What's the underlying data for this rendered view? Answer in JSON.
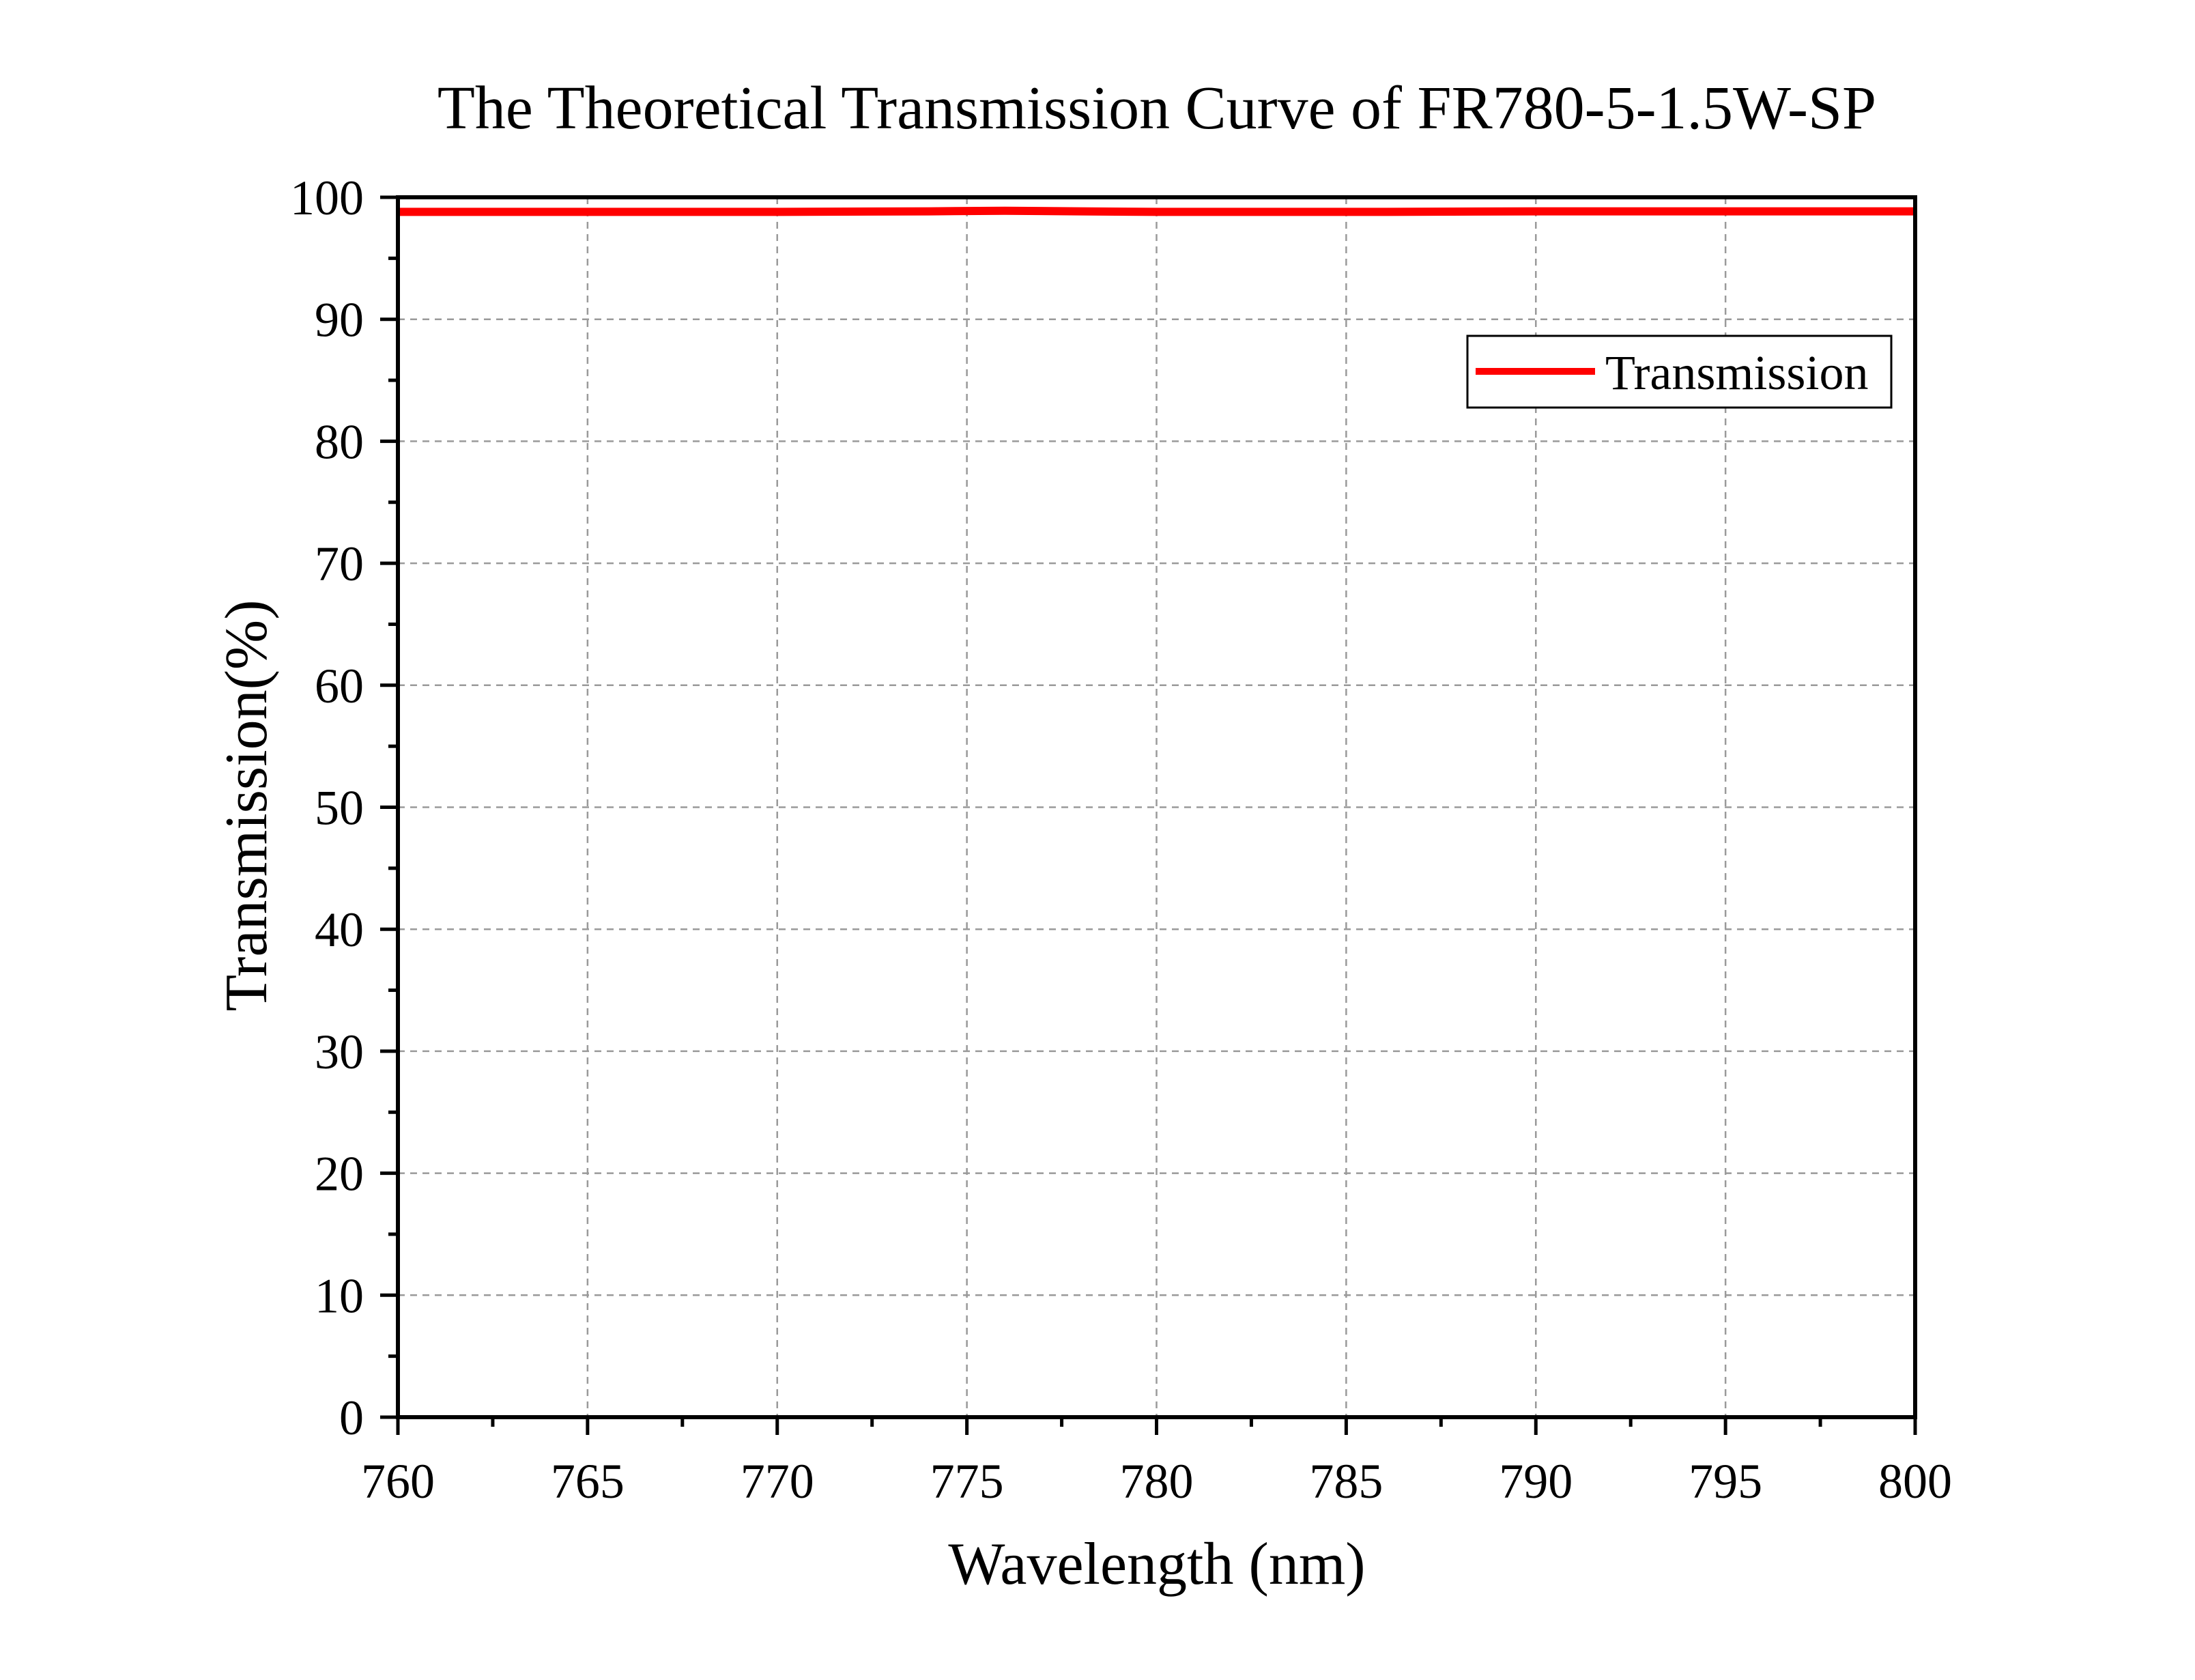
{
  "chart_data": {
    "type": "line",
    "title": "The Theoretical Transmission Curve of FR780-5-1.5W-SP",
    "xlabel": "Wavelength (nm)",
    "ylabel": "Transmission(%)",
    "xlim": [
      760,
      800
    ],
    "ylim": [
      0,
      100
    ],
    "xticks": [
      760,
      765,
      770,
      775,
      780,
      785,
      790,
      795,
      800
    ],
    "yticks": [
      0,
      10,
      20,
      30,
      40,
      50,
      60,
      70,
      80,
      90,
      100
    ],
    "grid": true,
    "legend_position": "top-right",
    "series": [
      {
        "name": "Transmission",
        "color": "#ff0000",
        "x": [
          760,
          765,
          770,
          774,
          776,
          778,
          780,
          782,
          786,
          790,
          795,
          800
        ],
        "y": [
          98.8,
          98.8,
          98.8,
          98.85,
          98.9,
          98.85,
          98.8,
          98.8,
          98.8,
          98.85,
          98.85,
          98.85
        ]
      }
    ]
  }
}
